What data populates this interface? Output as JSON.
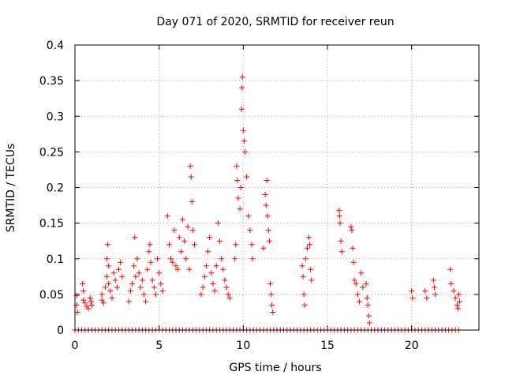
{
  "chart_data": {
    "type": "scatter",
    "title": "Day 071 of 2020, SRMTID for receiver reun",
    "xlabel": "GPS time / hours",
    "ylabel": "SRMTID / TECUs",
    "xlim": [
      0,
      24
    ],
    "ylim": [
      0,
      0.4
    ],
    "xticks": [
      0,
      5,
      10,
      15,
      20
    ],
    "xtick_labels": [
      "0",
      "5",
      "10",
      "15",
      "20"
    ],
    "yticks": [
      0,
      0.05,
      0.1,
      0.15,
      0.2,
      0.25,
      0.3,
      0.35,
      0.4
    ],
    "ytick_labels": [
      "0",
      "0.05",
      "0.1",
      "0.15",
      "0.2",
      "0.25",
      "0.3",
      "0.35",
      "0.4"
    ],
    "grid": true,
    "marker": "+",
    "color": "#ff0000",
    "series": [
      {
        "name": "SRMTID",
        "points": [
          [
            0.1,
            0.048
          ],
          [
            0.1,
            0.035
          ],
          [
            0.15,
            0.025
          ],
          [
            0.45,
            0.065
          ],
          [
            0.5,
            0.055
          ],
          [
            0.5,
            0.042
          ],
          [
            0.6,
            0.038
          ],
          [
            0.7,
            0.033
          ],
          [
            0.8,
            0.03
          ],
          [
            0.9,
            0.045
          ],
          [
            0.95,
            0.04
          ],
          [
            1.0,
            0.035
          ],
          [
            1.6,
            0.05
          ],
          [
            1.6,
            0.042
          ],
          [
            1.7,
            0.038
          ],
          [
            1.8,
            0.06
          ],
          [
            1.9,
            0.075
          ],
          [
            1.9,
            0.1
          ],
          [
            1.95,
            0.12
          ],
          [
            2.0,
            0.09
          ],
          [
            2.0,
            0.065
          ],
          [
            2.1,
            0.055
          ],
          [
            2.2,
            0.045
          ],
          [
            2.3,
            0.08
          ],
          [
            2.4,
            0.07
          ],
          [
            2.5,
            0.06
          ],
          [
            2.6,
            0.085
          ],
          [
            2.7,
            0.095
          ],
          [
            2.8,
            0.075
          ],
          [
            3.2,
            0.04
          ],
          [
            3.3,
            0.055
          ],
          [
            3.4,
            0.065
          ],
          [
            3.5,
            0.09
          ],
          [
            3.55,
            0.13
          ],
          [
            3.6,
            0.075
          ],
          [
            3.7,
            0.1
          ],
          [
            3.8,
            0.08
          ],
          [
            3.9,
            0.06
          ],
          [
            4.0,
            0.07
          ],
          [
            4.1,
            0.05
          ],
          [
            4.2,
            0.04
          ],
          [
            4.3,
            0.085
          ],
          [
            4.4,
            0.11
          ],
          [
            4.45,
            0.12
          ],
          [
            4.5,
            0.095
          ],
          [
            4.6,
            0.07
          ],
          [
            4.7,
            0.06
          ],
          [
            4.8,
            0.05
          ],
          [
            4.9,
            0.1
          ],
          [
            5.0,
            0.08
          ],
          [
            5.1,
            0.065
          ],
          [
            5.2,
            0.055
          ],
          [
            5.5,
            0.16
          ],
          [
            5.6,
            0.12
          ],
          [
            5.7,
            0.1
          ],
          [
            5.8,
            0.095
          ],
          [
            5.9,
            0.14
          ],
          [
            6.0,
            0.09
          ],
          [
            6.1,
            0.085
          ],
          [
            6.2,
            0.13
          ],
          [
            6.3,
            0.11
          ],
          [
            6.4,
            0.155
          ],
          [
            6.5,
            0.125
          ],
          [
            6.6,
            0.1
          ],
          [
            6.7,
            0.145
          ],
          [
            6.8,
            0.085
          ],
          [
            6.85,
            0.23
          ],
          [
            6.9,
            0.215
          ],
          [
            6.95,
            0.18
          ],
          [
            7.0,
            0.14
          ],
          [
            7.1,
            0.12
          ],
          [
            7.5,
            0.05
          ],
          [
            7.6,
            0.06
          ],
          [
            7.7,
            0.075
          ],
          [
            7.8,
            0.09
          ],
          [
            7.9,
            0.11
          ],
          [
            8.0,
            0.13
          ],
          [
            8.1,
            0.08
          ],
          [
            8.2,
            0.065
          ],
          [
            8.3,
            0.055
          ],
          [
            8.4,
            0.09
          ],
          [
            8.5,
            0.15
          ],
          [
            8.6,
            0.125
          ],
          [
            8.7,
            0.1
          ],
          [
            8.8,
            0.085
          ],
          [
            8.9,
            0.07
          ],
          [
            9.0,
            0.06
          ],
          [
            9.1,
            0.05
          ],
          [
            9.2,
            0.045
          ],
          [
            9.5,
            0.1
          ],
          [
            9.55,
            0.12
          ],
          [
            9.6,
            0.23
          ],
          [
            9.65,
            0.21
          ],
          [
            9.7,
            0.185
          ],
          [
            9.8,
            0.17
          ],
          [
            9.85,
            0.2
          ],
          [
            9.9,
            0.31
          ],
          [
            9.92,
            0.34
          ],
          [
            9.95,
            0.355
          ],
          [
            10.0,
            0.28
          ],
          [
            10.05,
            0.265
          ],
          [
            10.1,
            0.25
          ],
          [
            10.2,
            0.215
          ],
          [
            10.3,
            0.16
          ],
          [
            10.4,
            0.14
          ],
          [
            10.5,
            0.12
          ],
          [
            10.55,
            0.1
          ],
          [
            11.2,
            0.115
          ],
          [
            11.3,
            0.19
          ],
          [
            11.35,
            0.175
          ],
          [
            11.4,
            0.21
          ],
          [
            11.45,
            0.16
          ],
          [
            11.5,
            0.14
          ],
          [
            11.55,
            0.125
          ],
          [
            11.6,
            0.065
          ],
          [
            11.65,
            0.05
          ],
          [
            11.7,
            0.035
          ],
          [
            11.75,
            0.025
          ],
          [
            13.5,
            0.09
          ],
          [
            13.55,
            0.075
          ],
          [
            13.6,
            0.05
          ],
          [
            13.65,
            0.035
          ],
          [
            13.7,
            0.1
          ],
          [
            13.8,
            0.115
          ],
          [
            13.9,
            0.13
          ],
          [
            13.95,
            0.12
          ],
          [
            14.0,
            0.085
          ],
          [
            14.05,
            0.07
          ],
          [
            15.7,
            0.168
          ],
          [
            15.72,
            0.16
          ],
          [
            15.75,
            0.15
          ],
          [
            15.8,
            0.125
          ],
          [
            15.85,
            0.11
          ],
          [
            16.4,
            0.145
          ],
          [
            16.45,
            0.14
          ],
          [
            16.5,
            0.115
          ],
          [
            16.55,
            0.095
          ],
          [
            16.6,
            0.07
          ],
          [
            16.7,
            0.065
          ],
          [
            16.8,
            0.05
          ],
          [
            16.9,
            0.04
          ],
          [
            17.0,
            0.08
          ],
          [
            17.1,
            0.06
          ],
          [
            17.3,
            0.065
          ],
          [
            17.35,
            0.045
          ],
          [
            17.4,
            0.035
          ],
          [
            17.45,
            0.02
          ],
          [
            17.5,
            0.01
          ],
          [
            20.0,
            0.055
          ],
          [
            20.05,
            0.045
          ],
          [
            20.8,
            0.055
          ],
          [
            20.9,
            0.045
          ],
          [
            21.3,
            0.07
          ],
          [
            21.35,
            0.06
          ],
          [
            21.4,
            0.05
          ],
          [
            22.3,
            0.085
          ],
          [
            22.35,
            0.065
          ],
          [
            22.5,
            0.055
          ],
          [
            22.6,
            0.045
          ],
          [
            22.7,
            0.035
          ],
          [
            22.75,
            0.03
          ],
          [
            22.8,
            0.05
          ],
          [
            22.85,
            0.04
          ]
        ]
      },
      {
        "name": "zero-values",
        "x_from": 0.0,
        "x_to": 22.8,
        "x_step": 0.2,
        "y": 0
      }
    ]
  }
}
